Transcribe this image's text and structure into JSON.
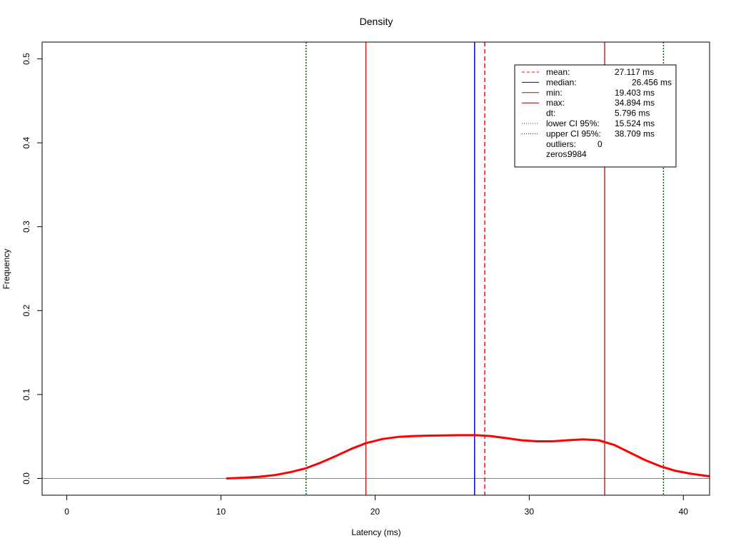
{
  "chart_data": {
    "type": "line",
    "title": "Density",
    "xlabel": "Latency (ms)",
    "ylabel": "Frequency",
    "xlim": [
      -1.6,
      41.7
    ],
    "ylim": [
      -0.02,
      0.52
    ],
    "xticks": [
      0,
      10,
      20,
      30,
      40
    ],
    "yticks": [
      0.0,
      0.1,
      0.2,
      0.3,
      0.4,
      0.5
    ],
    "xtick_labels": [
      "0",
      "10",
      "20",
      "30",
      "40"
    ],
    "ytick_labels": [
      "0.0",
      "0.1",
      "0.2",
      "0.3",
      "0.4",
      "0.5"
    ],
    "grid": false,
    "legend_position": "top-right",
    "zero_line": {
      "y": 0,
      "color": "#808080"
    },
    "density": {
      "color": "#ff0000",
      "x": [
        10.4,
        11.5,
        12.5,
        13.5,
        14.5,
        15.5,
        16.5,
        17.5,
        18.5,
        19.4,
        20.5,
        21.5,
        22.5,
        23.5,
        24.5,
        25.5,
        26.5,
        27.5,
        28.5,
        29.5,
        30.5,
        31.5,
        32.5,
        33.5,
        34.5,
        35.5,
        36.5,
        37.5,
        38.5,
        39.5,
        40.5,
        41.7
      ],
      "y": [
        0.0,
        0.0008,
        0.002,
        0.004,
        0.0075,
        0.012,
        0.019,
        0.027,
        0.0355,
        0.042,
        0.047,
        0.0495,
        0.0505,
        0.051,
        0.0513,
        0.0515,
        0.0515,
        0.0505,
        0.048,
        0.0455,
        0.0442,
        0.0442,
        0.0455,
        0.0465,
        0.0455,
        0.04,
        0.031,
        0.022,
        0.0145,
        0.009,
        0.0055,
        0.0025
      ]
    },
    "vlines": [
      {
        "name": "mean",
        "x": 27.117,
        "color": "#ff0000",
        "dash": "6,4",
        "width": 1.5
      },
      {
        "name": "median",
        "x": 26.456,
        "color": "#0000cc",
        "dash": "",
        "width": 1.5
      },
      {
        "name": "min",
        "x": 19.403,
        "color": "#cc0000",
        "dash": "",
        "width": 1.2
      },
      {
        "name": "max",
        "x": 34.894,
        "color": "#8b0000",
        "dash": "",
        "width": 1.2
      },
      {
        "name": "lower",
        "x": 15.524,
        "color": "#006400",
        "dash": "2,2",
        "width": 1.5
      },
      {
        "name": "upper",
        "x": 38.709,
        "color": "#006400",
        "dash": "2,2",
        "width": 1.5
      }
    ],
    "legend": [
      {
        "label": "mean:",
        "value": "27.117 ms",
        "color": "#ff0000",
        "dash": "4,3"
      },
      {
        "label": "median:",
        "value": "26.456 ms",
        "color": "#0000cc",
        "dash": "",
        "value_offset": true
      },
      {
        "label": "min:",
        "value": "19.403 ms",
        "color": "#cc0000",
        "dash": ""
      },
      {
        "label": "max:",
        "value": "34.894 ms",
        "color": "#8b0000",
        "dash": ""
      },
      {
        "label": "dt:",
        "value": "5.796 ms",
        "color": "",
        "dash": ""
      },
      {
        "label": "lower CI 95%:",
        "value": "15.524 ms",
        "color": "#006400",
        "dash": "1,2"
      },
      {
        "label": "upper CI 95%:",
        "value": "38.709 ms",
        "color": "#006400",
        "dash": "1,2"
      },
      {
        "label": "outliers:",
        "value": "0",
        "color": "",
        "dash": ""
      },
      {
        "label": "zeros:",
        "value": "9984",
        "color": "",
        "dash": ""
      }
    ]
  }
}
